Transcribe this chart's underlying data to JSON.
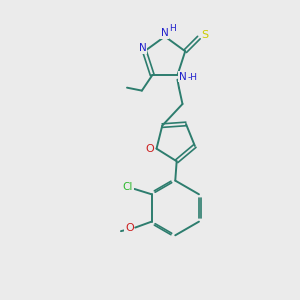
{
  "bg_color": "#ebebeb",
  "bond_color": "#2d7d6e",
  "N_color": "#2020cc",
  "S_color": "#cccc00",
  "O_color": "#cc2020",
  "Cl_color": "#2db82d",
  "figsize": [
    3.0,
    3.0
  ],
  "dpi": 100,
  "xlim": [
    0,
    10
  ],
  "ylim": [
    0,
    10
  ]
}
